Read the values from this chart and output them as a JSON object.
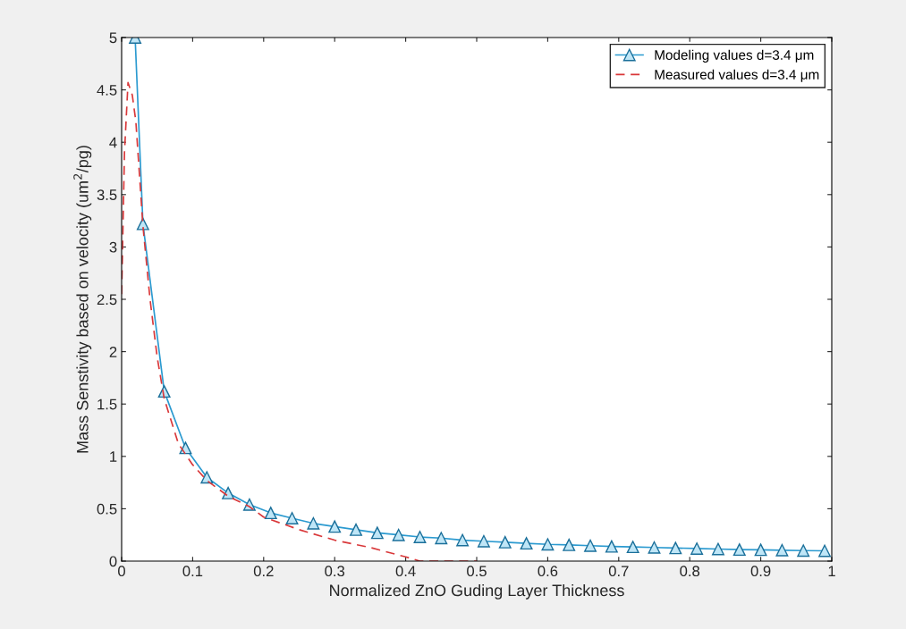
{
  "chart_data": {
    "type": "line",
    "xlabel": "Normalized ZnO Guding Layer Thickness",
    "ylabel": "Mass Senstivity based on velocity (um$^{2}$/pg)",
    "xlim": [
      0,
      1
    ],
    "ylim": [
      0,
      5
    ],
    "xticks": [
      0,
      0.1,
      0.2,
      0.3,
      0.4,
      0.5,
      0.6,
      0.7,
      0.8,
      0.9,
      1
    ],
    "yticks": [
      0,
      0.5,
      1,
      1.5,
      2,
      2.5,
      3,
      3.5,
      4,
      4.5,
      5
    ],
    "grid": false,
    "legend": "top right",
    "series": [
      {
        "name": "Modeling values d=3.4 μm",
        "color": "#2b9ad0",
        "marker": "triangle",
        "line_style": "solid",
        "x": [
          0.019,
          0.03,
          0.06,
          0.09,
          0.12,
          0.15,
          0.18,
          0.21,
          0.24,
          0.27,
          0.3,
          0.33,
          0.36,
          0.39,
          0.42,
          0.45,
          0.48,
          0.51,
          0.54,
          0.57,
          0.6,
          0.63,
          0.66,
          0.69,
          0.72,
          0.75,
          0.78,
          0.81,
          0.84,
          0.87,
          0.9,
          0.93,
          0.96,
          0.99
        ],
        "values": [
          5.0,
          3.22,
          1.62,
          1.08,
          0.8,
          0.65,
          0.54,
          0.46,
          0.41,
          0.36,
          0.33,
          0.3,
          0.27,
          0.25,
          0.23,
          0.22,
          0.2,
          0.19,
          0.18,
          0.17,
          0.16,
          0.155,
          0.147,
          0.14,
          0.135,
          0.13,
          0.125,
          0.12,
          0.115,
          0.11,
          0.108,
          0.104,
          0.1,
          0.098
        ]
      },
      {
        "name": "Measured values d=3.4 μm",
        "color": "#d9383a",
        "marker": "none",
        "line_style": "dashed",
        "x": [
          0,
          0.004,
          0.009,
          0.015,
          0.02,
          0.03,
          0.04,
          0.05,
          0.06,
          0.08,
          0.1,
          0.12,
          0.15,
          0.18,
          0.2,
          0.25,
          0.3,
          0.35,
          0.4,
          0.42,
          0.45,
          0.5
        ],
        "values": [
          2.55,
          3.9,
          4.57,
          4.45,
          4.2,
          3.2,
          2.5,
          1.95,
          1.55,
          1.12,
          0.92,
          0.77,
          0.62,
          0.52,
          0.42,
          0.3,
          0.2,
          0.13,
          0.04,
          0,
          0,
          0
        ]
      }
    ]
  }
}
